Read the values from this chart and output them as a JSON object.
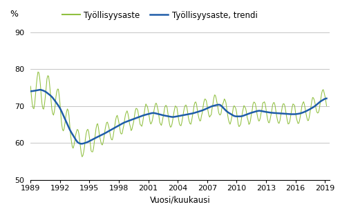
{
  "ylabel": "%",
  "xlabel": "Vuosi/kuukausi",
  "legend_labels": [
    "Työllisyysaste",
    "Työllisyysaste, trendi"
  ],
  "line_color_raw": "#90c040",
  "line_color_trend": "#1e5ca8",
  "ylim": [
    50,
    92
  ],
  "yticks": [
    50,
    60,
    70,
    80,
    90
  ],
  "xtick_years": [
    1989,
    1992,
    1995,
    1998,
    2001,
    2004,
    2007,
    2010,
    2013,
    2016,
    2019
  ],
  "background_color": "#ffffff",
  "grid_color": "#bbbbbb",
  "start_year": 1989,
  "start_month": 1,
  "end_year": 2019,
  "end_month": 3
}
